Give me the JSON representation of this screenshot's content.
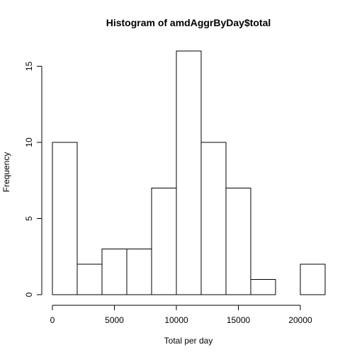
{
  "chart_data": {
    "type": "bar",
    "title": "Histogram of amdAggrByDay$total",
    "xlabel": "Total per day",
    "ylabel": "Frequency",
    "bin_edges": [
      0,
      2000,
      4000,
      6000,
      8000,
      10000,
      12000,
      14000,
      16000,
      18000,
      20000,
      22000
    ],
    "values": [
      10,
      2,
      3,
      3,
      7,
      16,
      10,
      7,
      1,
      0,
      2
    ],
    "xlim": [
      0,
      22000
    ],
    "ylim": [
      0,
      16
    ],
    "xticks": [
      0,
      5000,
      10000,
      15000,
      20000
    ],
    "xtick_labels": [
      "0",
      "5000",
      "10000",
      "15000",
      "20000"
    ],
    "yticks": [
      0,
      5,
      10,
      15
    ],
    "ytick_labels": [
      "0",
      "5",
      "10",
      "15"
    ],
    "grid": false,
    "legend": "none",
    "colors": {
      "bar_fill": "#ffffff",
      "bar_stroke": "#000000",
      "background": "#ffffff"
    }
  }
}
